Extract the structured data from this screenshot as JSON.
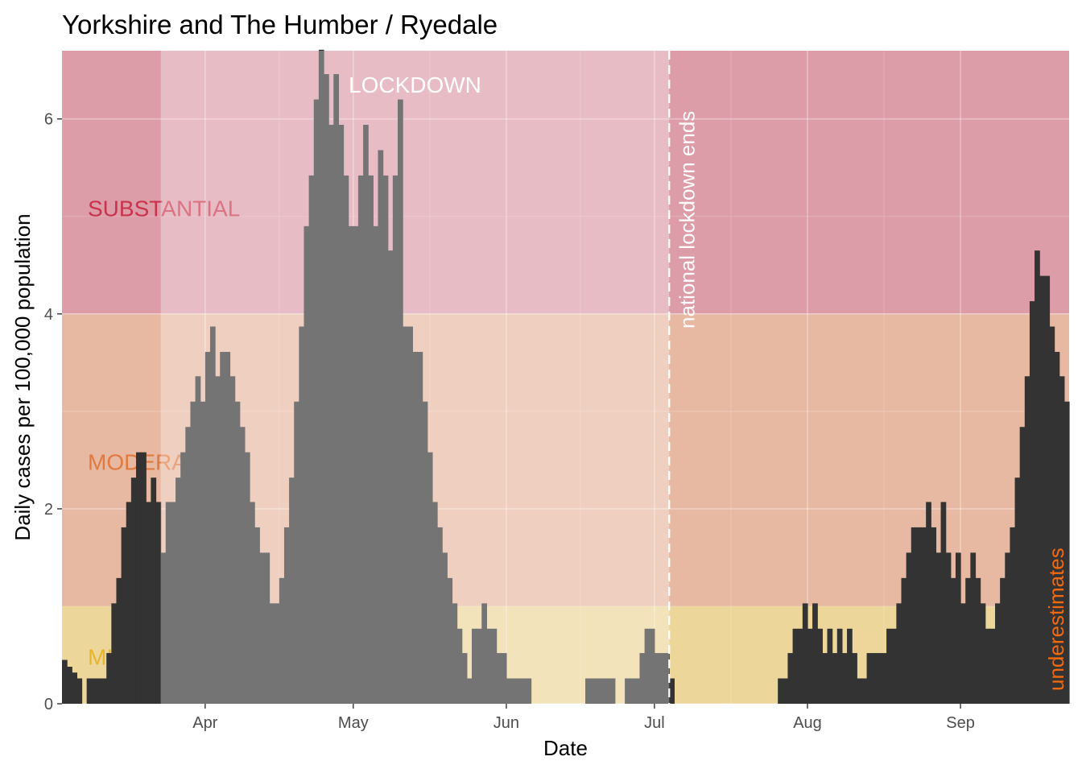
{
  "chart_data": {
    "type": "bar",
    "title": "Yorkshire and The Humber / Ryedale",
    "xlabel": "Date",
    "ylabel": "Daily cases per 100,000 population",
    "x_start": "2020-03-03",
    "ylim": [
      0,
      6.7
    ],
    "yticks": [
      0,
      2,
      4,
      6
    ],
    "xticks": [
      {
        "date": "2020-04-01",
        "label": "Apr"
      },
      {
        "date": "2020-05-01",
        "label": "May"
      },
      {
        "date": "2020-06-01",
        "label": "Jun"
      },
      {
        "date": "2020-07-01",
        "label": "Jul"
      },
      {
        "date": "2020-08-01",
        "label": "Aug"
      },
      {
        "date": "2020-09-01",
        "label": "Sep"
      }
    ],
    "grid": true,
    "values": [
      0.45,
      0.38,
      0.32,
      0.26,
      0.0,
      0.26,
      0.26,
      0.26,
      0.26,
      0.52,
      1.03,
      1.29,
      1.81,
      2.07,
      2.32,
      2.58,
      2.58,
      2.07,
      2.32,
      2.07,
      1.55,
      2.07,
      2.07,
      2.32,
      2.58,
      2.84,
      3.1,
      3.36,
      3.1,
      3.61,
      3.87,
      3.36,
      3.61,
      3.61,
      3.36,
      3.1,
      2.84,
      2.58,
      2.07,
      1.81,
      1.55,
      1.55,
      1.03,
      1.03,
      1.29,
      1.81,
      2.32,
      3.1,
      3.87,
      4.9,
      5.42,
      6.2,
      6.71,
      6.46,
      5.94,
      6.46,
      5.94,
      5.42,
      4.9,
      4.9,
      5.42,
      5.94,
      5.42,
      4.9,
      5.68,
      5.42,
      4.65,
      5.42,
      6.2,
      3.87,
      3.87,
      3.61,
      3.61,
      3.1,
      2.58,
      2.07,
      1.81,
      1.55,
      1.29,
      1.03,
      0.77,
      0.52,
      0.26,
      0.77,
      0.77,
      1.03,
      0.77,
      0.77,
      0.52,
      0.52,
      0.26,
      0.26,
      0.26,
      0.26,
      0.26,
      0.0,
      0.0,
      0.0,
      0.0,
      0.0,
      0.0,
      0.0,
      0.0,
      0.0,
      0.0,
      0.0,
      0.26,
      0.26,
      0.26,
      0.26,
      0.26,
      0.26,
      0.0,
      0.0,
      0.26,
      0.26,
      0.26,
      0.52,
      0.77,
      0.77,
      0.52,
      0.52,
      0.52,
      0.26,
      0.0,
      0.0,
      0.0,
      0.0,
      0.0,
      0.0,
      0.0,
      0.0,
      0.0,
      0.0,
      0.0,
      0.0,
      0.0,
      0.0,
      0.0,
      0.0,
      0.0,
      0.0,
      0.0,
      0.0,
      0.0,
      0.26,
      0.26,
      0.52,
      0.77,
      0.77,
      1.03,
      0.77,
      1.03,
      0.77,
      0.52,
      0.77,
      0.52,
      0.77,
      0.52,
      0.77,
      0.52,
      0.26,
      0.26,
      0.52,
      0.52,
      0.52,
      0.52,
      0.77,
      0.77,
      1.03,
      1.29,
      1.55,
      1.81,
      1.81,
      1.81,
      2.07,
      1.81,
      1.55,
      2.07,
      1.55,
      1.29,
      1.55,
      1.03,
      1.29,
      1.55,
      1.29,
      1.03,
      0.77,
      0.77,
      1.03,
      1.29,
      1.55,
      1.81,
      2.32,
      2.84,
      3.36,
      4.13,
      4.65,
      4.39,
      4.39,
      3.87,
      3.61,
      3.36,
      3.1
    ],
    "bands": [
      {
        "label": "SUBSTANTIAL",
        "ymin": 4,
        "ymax": 6.7,
        "fill": "#dc9ca8",
        "text_color": "#c9334b"
      },
      {
        "label": "MODERATE",
        "ymin": 1,
        "ymax": 4,
        "fill": "#e7b9a2",
        "text_color": "#e07a3e"
      },
      {
        "label": "MILD",
        "ymin": 0,
        "ymax": 1,
        "fill": "#ecd69a",
        "text_color": "#e8b52a"
      }
    ],
    "lockdown": {
      "label": "LOCKDOWN",
      "start": "2020-03-23",
      "end": "2020-07-04",
      "overlay": "rgba(255,255,255,0.32)"
    },
    "vline": {
      "date": "2020-07-04",
      "label": "national lockdown ends",
      "color": "#ffffff"
    },
    "annotations": [
      {
        "label": "underestimates",
        "color": "#f26a10"
      }
    ],
    "bar_color": "#333333",
    "panel_bg": "#ebebeb"
  }
}
